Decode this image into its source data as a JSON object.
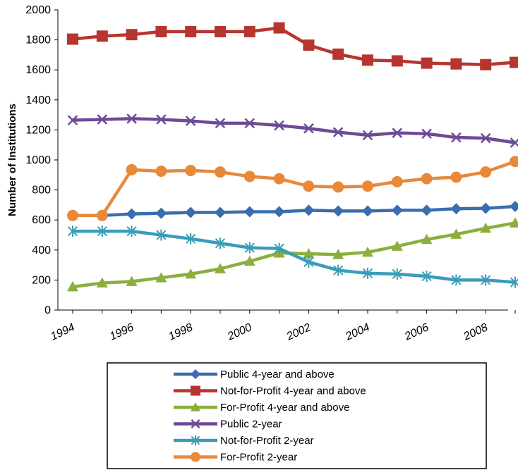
{
  "chart_data": {
    "type": "line",
    "title": "",
    "xlabel": "",
    "ylabel": "Number of Institutions",
    "ylim": [
      0,
      2000
    ],
    "yticks": [
      0,
      200,
      400,
      600,
      800,
      1000,
      1200,
      1400,
      1600,
      1800,
      2000
    ],
    "x": [
      1994,
      1995,
      1996,
      1997,
      1998,
      1999,
      2000,
      2001,
      2002,
      2003,
      2004,
      2005,
      2006,
      2007,
      2008,
      2009
    ],
    "xtick_labels": [
      "1994",
      "1996",
      "1998",
      "2000",
      "2002",
      "2004",
      "2006",
      "2008"
    ],
    "grid": false,
    "legend_position": "bottom",
    "series": [
      {
        "name": "Public 4-year and above",
        "color": "#3A6DB0",
        "marker": "diamond",
        "values": [
          630,
          630,
          640,
          645,
          650,
          650,
          655,
          655,
          665,
          660,
          660,
          665,
          665,
          675,
          678,
          690
        ]
      },
      {
        "name": "Not-for-Profit 4-year and above",
        "color": "#B8352F",
        "marker": "square",
        "values": [
          1805,
          1825,
          1835,
          1855,
          1855,
          1855,
          1855,
          1880,
          1765,
          1705,
          1665,
          1660,
          1645,
          1640,
          1635,
          1650
        ]
      },
      {
        "name": "For-Profit 4-year and above",
        "color": "#8BAF3D",
        "marker": "triangle",
        "values": [
          155,
          180,
          190,
          215,
          240,
          275,
          325,
          380,
          375,
          370,
          385,
          425,
          470,
          505,
          545,
          580
        ]
      },
      {
        "name": "Public 2-year",
        "color": "#6E4A96",
        "marker": "x",
        "values": [
          1265,
          1270,
          1275,
          1270,
          1260,
          1245,
          1245,
          1230,
          1210,
          1185,
          1165,
          1180,
          1175,
          1150,
          1145,
          1115
        ]
      },
      {
        "name": "Not-for-Profit 2-year",
        "color": "#3A9DB8",
        "marker": "star",
        "values": [
          525,
          525,
          525,
          500,
          475,
          445,
          415,
          410,
          320,
          265,
          245,
          240,
          225,
          200,
          200,
          185
        ]
      },
      {
        "name": "For-Profit 2-year",
        "color": "#E8893A",
        "marker": "circle",
        "values": [
          630,
          630,
          935,
          925,
          930,
          920,
          890,
          875,
          825,
          820,
          825,
          855,
          875,
          885,
          920,
          990
        ]
      }
    ]
  }
}
